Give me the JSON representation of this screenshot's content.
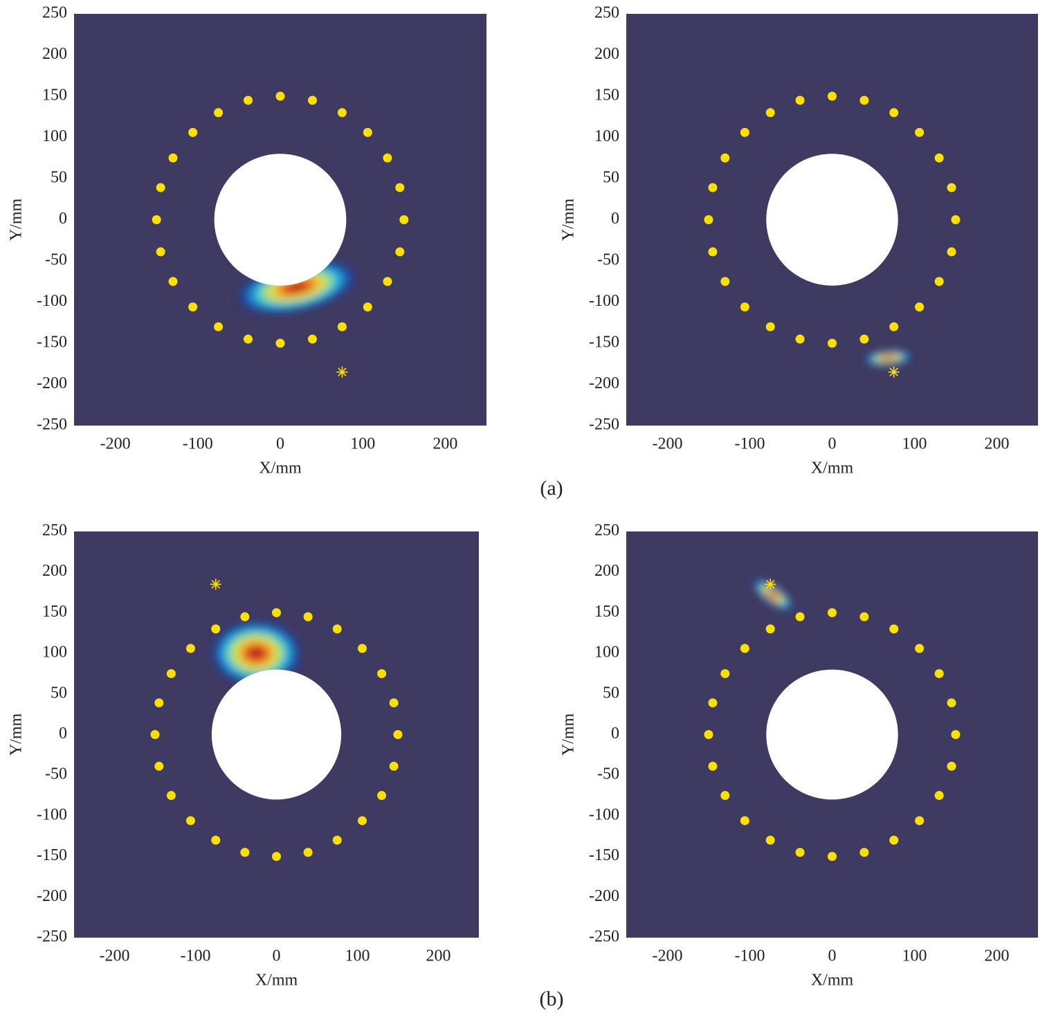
{
  "chart_data": [
    {
      "type": "scatter",
      "xlabel": "X/mm",
      "ylabel": "Y/mm",
      "xlim": [
        -250,
        250
      ],
      "ylim": [
        -250,
        250
      ],
      "xticks": [
        -200,
        -100,
        0,
        100,
        200
      ],
      "yticks": [
        -250,
        -200,
        -150,
        -100,
        -50,
        0,
        50,
        100,
        150,
        200,
        250
      ],
      "background": "#3f3a62",
      "obstacle_radius": 80,
      "series": [
        {
          "color": "#ffe000",
          "marker": "dot",
          "x": [
            150,
            145,
            130,
            106,
            75,
            39,
            0,
            -39,
            -75,
            -106,
            -130,
            -145,
            -150,
            -145,
            -130,
            -106,
            -75,
            -39,
            0,
            39,
            75,
            106,
            130,
            145
          ],
          "y": [
            0,
            39,
            75,
            106,
            130,
            145,
            150,
            145,
            130,
            106,
            75,
            39,
            0,
            -39,
            -75,
            -106,
            -130,
            -145,
            -150,
            -145,
            -130,
            -106,
            -75,
            -39
          ]
        },
        {
          "color": "#ffe000",
          "marker": "star",
          "x": [
            75
          ],
          "y": [
            -185
          ]
        }
      ],
      "hotspot": {
        "x": 20,
        "y": -82,
        "sx": 55,
        "sy": 22,
        "angle": 12
      }
    },
    {
      "type": "scatter",
      "xlabel": "X/mm",
      "ylabel": "Y/mm",
      "xlim": [
        -250,
        250
      ],
      "ylim": [
        -250,
        250
      ],
      "xticks": [
        -200,
        -100,
        0,
        100,
        200
      ],
      "yticks": [
        -250,
        -200,
        -150,
        -100,
        -50,
        0,
        50,
        100,
        150,
        200,
        250
      ],
      "background": "#3f3a62",
      "obstacle_radius": 80,
      "series": [
        {
          "color": "#ffe000",
          "marker": "dot",
          "x": [
            150,
            145,
            130,
            106,
            75,
            39,
            0,
            -39,
            -75,
            -106,
            -130,
            -145,
            -150,
            -145,
            -130,
            -106,
            -75,
            -39,
            0,
            39,
            75,
            106,
            130,
            145
          ],
          "y": [
            0,
            39,
            75,
            106,
            130,
            145,
            150,
            145,
            130,
            106,
            75,
            39,
            0,
            -39,
            -75,
            -106,
            -130,
            -145,
            -150,
            -145,
            -130,
            -106,
            -75,
            -39
          ]
        },
        {
          "color": "#ffe000",
          "marker": "star",
          "x": [
            75
          ],
          "y": [
            -185
          ]
        }
      ],
      "hotspot": {
        "x": 68,
        "y": -168,
        "sx": 22,
        "sy": 7,
        "angle": 5
      }
    },
    {
      "type": "scatter",
      "xlabel": "X/mm",
      "ylabel": "Y/mm",
      "xlim": [
        -250,
        250
      ],
      "ylim": [
        -250,
        250
      ],
      "xticks": [
        -200,
        -100,
        0,
        100,
        200
      ],
      "yticks": [
        -250,
        -200,
        -150,
        -100,
        -50,
        0,
        50,
        100,
        150,
        200,
        250
      ],
      "background": "#3f3a62",
      "obstacle_radius": 80,
      "series": [
        {
          "color": "#ffe000",
          "marker": "dot",
          "x": [
            150,
            145,
            130,
            106,
            75,
            39,
            0,
            -39,
            -75,
            -106,
            -130,
            -145,
            -150,
            -145,
            -130,
            -106,
            -75,
            -39,
            0,
            39,
            75,
            106,
            130,
            145
          ],
          "y": [
            0,
            39,
            75,
            106,
            130,
            145,
            150,
            145,
            130,
            106,
            75,
            39,
            0,
            -39,
            -75,
            -106,
            -130,
            -145,
            -150,
            -145,
            -130,
            -106,
            -75,
            -39
          ]
        },
        {
          "color": "#ffe000",
          "marker": "star",
          "x": [
            -75
          ],
          "y": [
            185
          ]
        }
      ],
      "hotspot": {
        "x": -25,
        "y": 100,
        "sx": 42,
        "sy": 30,
        "angle": 0
      }
    },
    {
      "type": "scatter",
      "xlabel": "X/mm",
      "ylabel": "Y/mm",
      "xlim": [
        -250,
        250
      ],
      "ylim": [
        -250,
        250
      ],
      "xticks": [
        -200,
        -100,
        0,
        100,
        200
      ],
      "yticks": [
        -250,
        -200,
        -150,
        -100,
        -50,
        0,
        50,
        100,
        150,
        200,
        250
      ],
      "background": "#3f3a62",
      "obstacle_radius": 80,
      "series": [
        {
          "color": "#ffe000",
          "marker": "dot",
          "x": [
            150,
            145,
            130,
            106,
            75,
            39,
            0,
            -39,
            -75,
            -106,
            -130,
            -145,
            -150,
            -145,
            -130,
            -106,
            -75,
            -39,
            0,
            39,
            75,
            106,
            130,
            145
          ],
          "y": [
            0,
            39,
            75,
            106,
            130,
            145,
            150,
            145,
            130,
            106,
            75,
            39,
            0,
            -39,
            -75,
            -106,
            -130,
            -145,
            -150,
            -145,
            -130,
            -106,
            -75,
            -39
          ]
        },
        {
          "color": "#ffe000",
          "marker": "star",
          "x": [
            -75
          ],
          "y": [
            185
          ]
        }
      ],
      "hotspot": {
        "x": -72,
        "y": 172,
        "sx": 22,
        "sy": 8,
        "angle": -35
      }
    }
  ],
  "figure_labels": [
    "(a)",
    "(b)"
  ]
}
